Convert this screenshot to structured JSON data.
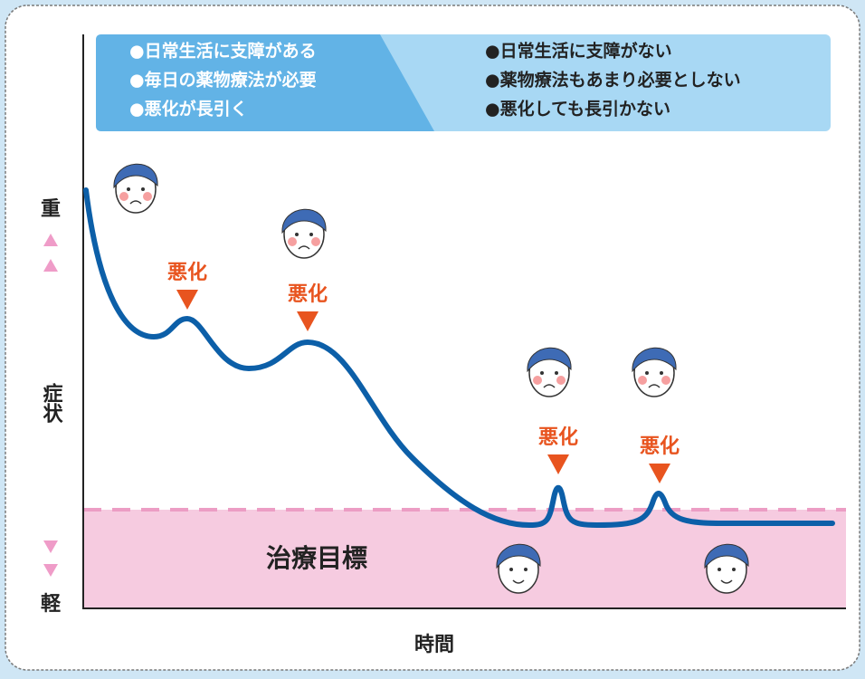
{
  "header": {
    "left": [
      "●日常生活に支障がある",
      "●毎日の薬物療法が必要",
      "●悪化が長引く"
    ],
    "right": [
      "●日常生活に支障がない",
      "●薬物療法もあまり必要としない",
      "●悪化しても長引かない"
    ]
  },
  "y_axis": {
    "top": "重",
    "middle": "症状",
    "bottom": "軽"
  },
  "x_axis": "時間",
  "annotations": [
    "悪化",
    "悪化",
    "悪化",
    "悪化"
  ],
  "target_zone": "治療目標"
}
